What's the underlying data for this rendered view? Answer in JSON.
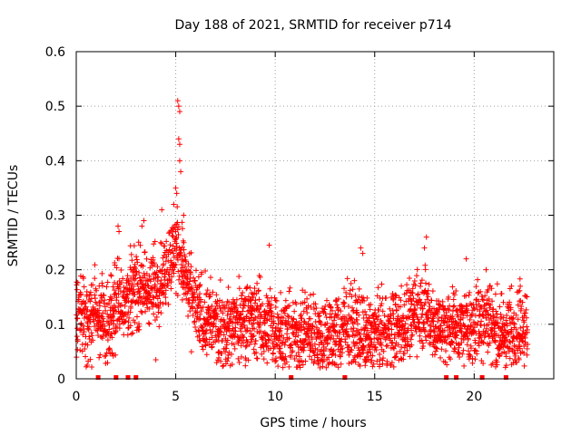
{
  "chart_data": {
    "type": "scatter",
    "title": "Day 188 of 2021, SRMTID for receiver p714",
    "xlabel": "GPS time / hours",
    "ylabel": "SRMTID / TECUs",
    "xlim": [
      0,
      24
    ],
    "ylim": [
      0,
      0.6
    ],
    "xticks": [
      0,
      5,
      10,
      15,
      20
    ],
    "yticks": [
      0,
      0.1,
      0.2,
      0.3,
      0.4,
      0.5,
      0.6
    ],
    "xtick_labels": [
      "0",
      "5",
      "10",
      "15",
      "20"
    ],
    "ytick_labels": [
      "0",
      "0.1",
      "0.2",
      "0.3",
      "0.4",
      "0.5",
      "0.6"
    ],
    "grid": true,
    "marker": "+",
    "series_color": "#ff0000",
    "gap_markers_x": [
      1.1,
      2.0,
      2.6,
      3.0,
      10.8,
      13.5,
      18.6,
      19.1,
      20.4,
      21.6
    ],
    "envelope": {
      "x": [
        0,
        0.5,
        1.0,
        1.5,
        2.0,
        2.5,
        3.0,
        3.5,
        4.0,
        4.5,
        5.0,
        5.3,
        5.6,
        6.0,
        6.5,
        7.0,
        7.5,
        8.0,
        8.5,
        9.0,
        9.5,
        10.0,
        10.5,
        11.0,
        11.5,
        12.0,
        12.5,
        13.0,
        13.5,
        14.0,
        14.5,
        15.0,
        15.5,
        16.0,
        16.5,
        17.0,
        17.5,
        18.0,
        18.5,
        19.0,
        19.5,
        20.0,
        20.5,
        21.0,
        21.5,
        22.0,
        22.7
      ],
      "y": [
        0.12,
        0.11,
        0.12,
        0.1,
        0.14,
        0.15,
        0.17,
        0.16,
        0.17,
        0.2,
        0.24,
        0.22,
        0.16,
        0.13,
        0.11,
        0.1,
        0.09,
        0.1,
        0.11,
        0.11,
        0.1,
        0.09,
        0.08,
        0.08,
        0.09,
        0.08,
        0.08,
        0.08,
        0.09,
        0.1,
        0.08,
        0.08,
        0.09,
        0.09,
        0.1,
        0.12,
        0.13,
        0.1,
        0.09,
        0.1,
        0.09,
        0.09,
        0.12,
        0.1,
        0.08,
        0.09,
        0.1
      ]
    },
    "peaks": [
      {
        "x": 5.1,
        "y": 0.51
      },
      {
        "x": 5.15,
        "y": 0.5
      },
      {
        "x": 5.2,
        "y": 0.49
      },
      {
        "x": 5.15,
        "y": 0.44
      },
      {
        "x": 5.2,
        "y": 0.43
      },
      {
        "x": 5.2,
        "y": 0.4
      },
      {
        "x": 5.25,
        "y": 0.38
      },
      {
        "x": 5.0,
        "y": 0.35
      },
      {
        "x": 5.05,
        "y": 0.34
      },
      {
        "x": 4.9,
        "y": 0.32
      },
      {
        "x": 4.3,
        "y": 0.31
      },
      {
        "x": 5.4,
        "y": 0.3
      },
      {
        "x": 2.1,
        "y": 0.28
      },
      {
        "x": 2.15,
        "y": 0.27
      },
      {
        "x": 3.4,
        "y": 0.29
      },
      {
        "x": 3.3,
        "y": 0.28
      },
      {
        "x": 9.7,
        "y": 0.245
      },
      {
        "x": 14.3,
        "y": 0.24
      },
      {
        "x": 14.4,
        "y": 0.23
      },
      {
        "x": 17.6,
        "y": 0.26
      },
      {
        "x": 17.5,
        "y": 0.24
      },
      {
        "x": 19.6,
        "y": 0.22
      },
      {
        "x": 20.6,
        "y": 0.2
      },
      {
        "x": 0.55,
        "y": 0.025
      },
      {
        "x": 0.5,
        "y": 0.022
      },
      {
        "x": 4.0,
        "y": 0.035
      }
    ]
  }
}
